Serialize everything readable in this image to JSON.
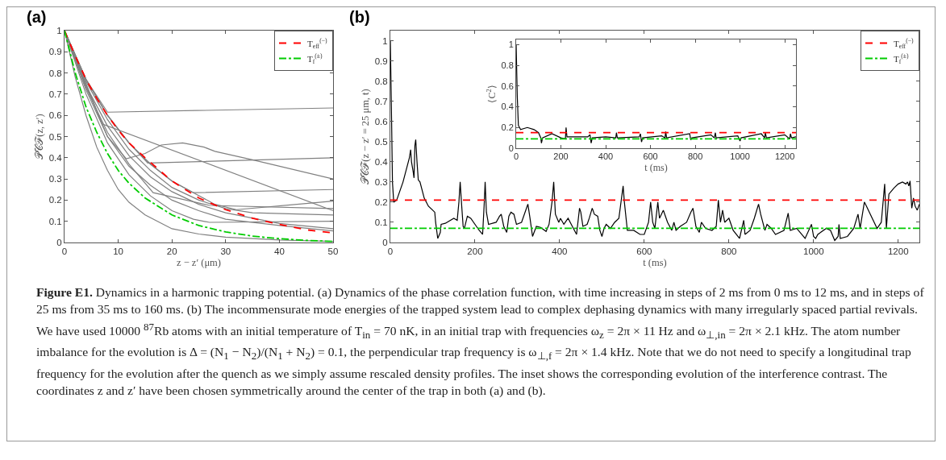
{
  "chart_data": [
    {
      "type": "line",
      "title": "(a)",
      "xlabel": "z − z′ (μm)",
      "ylabel": "𝒫𝒞ℱ(z, z′)",
      "xlim": [
        0,
        50
      ],
      "ylim": [
        0,
        1
      ],
      "xticks": [
        0,
        10,
        20,
        30,
        40,
        50
      ],
      "yticks": [
        0,
        0.1,
        0.2,
        0.3,
        0.4,
        0.5,
        0.6,
        0.7,
        0.8,
        0.9,
        1
      ],
      "legend": "top right",
      "annotations": [
        "Figure E1.",
        "Dynamics in a harmonic trapping potential. (a) Dynamics of the phase correlation function, with time increasing in steps of 2 ms from 0 ms to 12 ms, and in steps of 25 ms from 35 ms to 160 ms. (b) The incommensurate mode energies of the trapped system lead to complex dephasing dynamics with many irregularly spaced partial revivals. We have used 10000 $^{87}$Rb atoms with an initial temperature of T$_{in}$ = 70 nK, in an initial trap with frequencies ω$_{z}$ = 2π × 11 Hz and ω$_{⊥,in}$ = 2π × 2.1 kHz. The atom number imbalance for the evolution is Δ = (N$_{1}$ − N$_{2}$)/(N$_{1}$ + N$_{2}$) = 0.1, the perpendicular trap frequency is ω$_{⊥,f}$ = 2π × 1.4 kHz. Note that we do not need to specify a longitudinal trap frequency for the evolution after the quench as we simply assume rescaled density profiles. The inset shows the corresponding evolution of the interference contrast. The coordinates z and z′ have been chosen symmetrically around the center of the trap in both (a) and (b)."
      ],
      "series": [
        {
          "color": "#808080",
          "x": [
            0,
            4,
            8,
            50
          ],
          "values": [
            1,
            0.77,
            0.615,
            0.635
          ]
        },
        {
          "color": "#808080",
          "x": [
            0,
            4,
            7,
            50
          ],
          "values": [
            1,
            0.75,
            0.56,
            0.15
          ]
        },
        {
          "color": "#808080",
          "x": [
            0,
            4,
            8,
            11.5,
            15,
            18,
            22,
            26,
            28,
            35,
            50
          ],
          "values": [
            1,
            0.74,
            0.5,
            0.395,
            0.42,
            0.46,
            0.47,
            0.45,
            0.43,
            0.39,
            0.3
          ]
        },
        {
          "color": "#808080",
          "x": [
            0,
            4,
            8,
            12,
            15.5,
            50
          ],
          "values": [
            1,
            0.77,
            0.6,
            0.47,
            0.375,
            0.4
          ]
        },
        {
          "color": "#808080",
          "x": [
            0,
            4,
            8,
            12,
            16,
            20,
            24,
            50
          ],
          "values": [
            1,
            0.77,
            0.6,
            0.47,
            0.37,
            0.29,
            0.235,
            0.25
          ]
        },
        {
          "color": "#808080",
          "x": [
            0,
            4,
            8,
            12,
            16,
            20,
            24,
            28,
            32,
            50
          ],
          "values": [
            1,
            0.77,
            0.6,
            0.47,
            0.37,
            0.29,
            0.235,
            0.18,
            0.155,
            0.195
          ]
        },
        {
          "color": "#808080",
          "x": [
            0,
            4,
            8,
            12,
            16.5,
            27,
            50
          ],
          "values": [
            1,
            0.73,
            0.52,
            0.37,
            0.235,
            0.175,
            0.16
          ]
        },
        {
          "color": "#808080",
          "x": [
            0,
            4,
            8,
            12,
            16,
            20,
            25,
            30,
            35,
            50
          ],
          "values": [
            1,
            0.76,
            0.58,
            0.44,
            0.34,
            0.26,
            0.2,
            0.16,
            0.14,
            0.13
          ]
        },
        {
          "color": "#808080",
          "x": [
            0,
            4,
            8,
            12,
            16,
            20,
            24,
            27,
            50
          ],
          "values": [
            1,
            0.7,
            0.47,
            0.32,
            0.22,
            0.15,
            0.11,
            0.095,
            0.1
          ]
        },
        {
          "color": "#808080",
          "x": [
            0,
            4,
            8,
            12,
            16,
            20,
            25,
            30,
            40,
            50
          ],
          "values": [
            1,
            0.74,
            0.55,
            0.41,
            0.31,
            0.24,
            0.18,
            0.14,
            0.09,
            0.065
          ]
        },
        {
          "color": "#808080",
          "x": [
            0,
            4,
            8,
            12,
            16,
            20,
            25,
            30,
            40,
            50
          ],
          "values": [
            1,
            0.72,
            0.5,
            0.36,
            0.27,
            0.2,
            0.15,
            0.11,
            0.08,
            0.055
          ]
        },
        {
          "color": "#808080",
          "x": [
            0,
            2,
            4,
            6,
            8,
            10,
            12,
            15,
            20,
            25,
            30,
            40,
            50
          ],
          "values": [
            1,
            0.78,
            0.6,
            0.45,
            0.34,
            0.25,
            0.19,
            0.13,
            0.065,
            0.04,
            0.025,
            0.012,
            0.005
          ]
        },
        {
          "name": "T$_{eff}$$^{(−)}$",
          "color": "#ff0000",
          "line_style": "dashed",
          "x": [
            0,
            2,
            4,
            6,
            8,
            10,
            12,
            15,
            20,
            25,
            30,
            35,
            40,
            45,
            50
          ],
          "values": [
            1,
            0.88,
            0.77,
            0.68,
            0.6,
            0.53,
            0.47,
            0.4,
            0.29,
            0.21,
            0.155,
            0.115,
            0.085,
            0.06,
            0.045
          ]
        },
        {
          "name": "T$_{f}$$^{(±)}$",
          "color": "#00cc00",
          "line_style": "dashdot",
          "x": [
            0,
            2,
            4,
            6,
            8,
            10,
            12,
            15,
            20,
            25,
            30,
            35,
            40,
            45,
            50
          ],
          "values": [
            1,
            0.8,
            0.64,
            0.52,
            0.42,
            0.34,
            0.28,
            0.21,
            0.13,
            0.08,
            0.05,
            0.03,
            0.018,
            0.01,
            0.005
          ]
        }
      ]
    },
    {
      "type": "line",
      "title": "(b)",
      "xlabel": "t (ms)",
      "ylabel": "𝒫𝒞ℱ(z − z′ = 25 μm, t)",
      "xlim": [
        0,
        1250
      ],
      "ylim": [
        0,
        1.05
      ],
      "xticks": [
        0,
        200,
        400,
        600,
        800,
        1000,
        1200
      ],
      "yticks": [
        0,
        0.1,
        0.2,
        0.3,
        0.4,
        0.5,
        0.6,
        0.7,
        0.8,
        0.9,
        1
      ],
      "legend": "top right",
      "series": [
        {
          "color": "#000000",
          "x": [
            0,
            3,
            5,
            8,
            15,
            30,
            45,
            48,
            50,
            54,
            56,
            58,
            60,
            63,
            66,
            70,
            80,
            90,
            100,
            105,
            107,
            112,
            118,
            120,
            130,
            150,
            158,
            162,
            165,
            168,
            172,
            175,
            182,
            190,
            210,
            218,
            222,
            224,
            227,
            232,
            250,
            258,
            262,
            268,
            275,
            280,
            285,
            292,
            298,
            310,
            325,
            330,
            336,
            345,
            355,
            368,
            375,
            382,
            386,
            390,
            398,
            402,
            410,
            420,
            430,
            440,
            447,
            450,
            455,
            465,
            470,
            477,
            482,
            490,
            495,
            500,
            505,
            510,
            520,
            530,
            540,
            550,
            553,
            560,
            575,
            590,
            600,
            610,
            615,
            620,
            625,
            632,
            636,
            645,
            650,
            655,
            665,
            670,
            675,
            685,
            700,
            710,
            715,
            722,
            730,
            735,
            745,
            760,
            770,
            775,
            780,
            785,
            790,
            800,
            810,
            825,
            835,
            838,
            850,
            860,
            870,
            875,
            885,
            890,
            900,
            910,
            930,
            940,
            945,
            960,
            980,
            995,
            1000,
            1005,
            1010,
            1030,
            1040,
            1050,
            1058,
            1060,
            1063,
            1080,
            1095,
            1105,
            1110,
            1120,
            1125,
            1150,
            1160,
            1168,
            1172,
            1178,
            1190,
            1200,
            1210,
            1218,
            1222,
            1225,
            1228,
            1232,
            1236,
            1240,
            1245,
            1250
          ],
          "values": [
            1,
            0.6,
            0.3,
            0.2,
            0.21,
            0.3,
            0.42,
            0.46,
            0.4,
            0.35,
            0.32,
            0.48,
            0.51,
            0.4,
            0.31,
            0.3,
            0.22,
            0.18,
            0.16,
            0.15,
            0.1,
            0.02,
            0.05,
            0.09,
            0.095,
            0.12,
            0.11,
            0.2,
            0.3,
            0.2,
            0.08,
            0.07,
            0.13,
            0.12,
            0.06,
            0.04,
            0.2,
            0.3,
            0.15,
            0.09,
            0.1,
            0.13,
            0.14,
            0.08,
            0.05,
            0.13,
            0.15,
            0.14,
            0.09,
            0.1,
            0.19,
            0.12,
            0.03,
            0.08,
            0.075,
            0.055,
            0.09,
            0.2,
            0.3,
            0.14,
            0.1,
            0.12,
            0.09,
            0.12,
            0.08,
            0.04,
            0.17,
            0.15,
            0.08,
            0.09,
            0.12,
            0.17,
            0.14,
            0.13,
            0.06,
            0.03,
            0.07,
            0.09,
            0.07,
            0.1,
            0.12,
            0.28,
            0.2,
            0.06,
            0.06,
            0.04,
            0.04,
            0.1,
            0.2,
            0.1,
            0.07,
            0.2,
            0.12,
            0.16,
            0.13,
            0.1,
            0.06,
            0.1,
            0.06,
            0.08,
            0.1,
            0.15,
            0.17,
            0.08,
            0.05,
            0.1,
            0.07,
            0.06,
            0.08,
            0.21,
            0.1,
            0.16,
            0.1,
            0.12,
            0.06,
            0.02,
            0.11,
            0.04,
            0.06,
            0.12,
            0.19,
            0.14,
            0.06,
            0.09,
            0.07,
            0.04,
            0.06,
            0.145,
            0.06,
            0.07,
            0.02,
            0.09,
            0.03,
            0.02,
            0.04,
            0.07,
            0.06,
            0.01,
            0.03,
            0.09,
            0.02,
            0.03,
            0.07,
            0.14,
            0.07,
            0.2,
            0.18,
            0.07,
            0.1,
            0.29,
            0.07,
            0.24,
            0.27,
            0.29,
            0.3,
            0.29,
            0.3,
            0.28,
            0.305,
            0.17,
            0.22,
            0.18,
            0.16,
            0.19
          ]
        },
        {
          "name": "T$_{eff}$$^{(−)}$",
          "color": "#ff0000",
          "line_style": "dashed",
          "x": [
            0,
            1250
          ],
          "values": [
            0.21,
            0.21
          ]
        },
        {
          "name": "T$_{f}$$^{(±)}$",
          "color": "#00cc00",
          "line_style": "dashdot",
          "x": [
            0,
            1250
          ],
          "values": [
            0.07,
            0.07
          ]
        }
      ]
    },
    {
      "type": "line",
      "xlabel": "t (ms)",
      "ylabel": "⟨C$^{2}$⟩",
      "xlim": [
        0,
        1250
      ],
      "ylim": [
        0,
        1.05
      ],
      "xticks": [
        0,
        200,
        400,
        600,
        800,
        1000,
        1200
      ],
      "yticks": [
        0,
        0.2,
        0.4,
        0.6,
        0.8,
        1
      ],
      "series": [
        {
          "color": "#000000",
          "x": [
            0,
            5,
            10,
            20,
            50,
            80,
            100,
            110,
            113,
            118,
            160,
            200,
            220,
            223,
            227,
            320,
            330,
            335,
            340,
            400,
            445,
            448,
            452,
            550,
            555,
            560,
            565,
            650,
            665,
            668,
            672,
            775,
            780,
            785,
            870,
            885,
            890,
            893,
            990,
            1000,
            1005,
            1095,
            1110,
            1113,
            1118,
            1200,
            1222,
            1225,
            1230,
            1250
          ],
          "values": [
            1,
            0.5,
            0.22,
            0.18,
            0.2,
            0.18,
            0.15,
            0.1,
            0.05,
            0.1,
            0.14,
            0.1,
            0.09,
            0.2,
            0.11,
            0.11,
            0.13,
            0.05,
            0.1,
            0.11,
            0.1,
            0.15,
            0.1,
            0.11,
            0.14,
            0.06,
            0.1,
            0.12,
            0.1,
            0.16,
            0.1,
            0.14,
            0.08,
            0.1,
            0.13,
            0.1,
            0.15,
            0.1,
            0.12,
            0.07,
            0.1,
            0.14,
            0.1,
            0.15,
            0.1,
            0.13,
            0.09,
            0.14,
            0.1,
            0.11
          ]
        },
        {
          "color": "#ff0000",
          "line_style": "dashed",
          "x": [
            0,
            1250
          ],
          "values": [
            0.15,
            0.15
          ]
        },
        {
          "color": "#00cc00",
          "line_style": "dashdot",
          "x": [
            0,
            1250
          ],
          "values": [
            0.09,
            0.09
          ]
        }
      ]
    }
  ]
}
